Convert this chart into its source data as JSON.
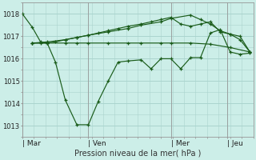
{
  "background_color": "#cceee8",
  "grid_color": "#aad4ce",
  "line_color": "#1a5c1a",
  "ylabel": "Pression niveau de la mer( hPa )",
  "ylim": [
    1012.5,
    1018.5
  ],
  "yticks": [
    1013,
    1014,
    1015,
    1016,
    1017,
    1018
  ],
  "xlim": [
    0,
    7.0
  ],
  "day_labels": [
    "| Mar",
    "| Ven",
    "| Mer",
    "| Jeu"
  ],
  "day_positions": [
    0.0,
    2.0,
    4.5,
    6.2
  ],
  "vline_positions": [
    0.0,
    2.0,
    4.5,
    6.2
  ],
  "series": [
    {
      "x": [
        0.0,
        0.3,
        0.55,
        0.75,
        1.0,
        1.3,
        1.65,
        2.0,
        2.3,
        2.6,
        2.9,
        3.2,
        3.6,
        3.9,
        4.2,
        4.5,
        4.8,
        5.1,
        5.4,
        5.7,
        6.0,
        6.3,
        6.6,
        6.9
      ],
      "y": [
        1018.0,
        1017.4,
        1016.75,
        1016.7,
        1015.85,
        1014.15,
        1013.05,
        1013.05,
        1014.1,
        1015.0,
        1015.85,
        1015.9,
        1015.95,
        1015.55,
        1016.0,
        1016.0,
        1015.55,
        1016.05,
        1016.05,
        1017.15,
        1017.3,
        1016.3,
        1016.2,
        1016.25
      ]
    },
    {
      "x": [
        0.3,
        0.55,
        0.75,
        1.0,
        1.3,
        1.65,
        2.0,
        2.3,
        2.6,
        2.9,
        3.2,
        3.6,
        3.9,
        4.2,
        4.5,
        4.8,
        5.1,
        5.4,
        5.7,
        6.0,
        6.3,
        6.6,
        6.9
      ],
      "y": [
        1016.7,
        1016.7,
        1016.7,
        1016.75,
        1016.85,
        1016.95,
        1017.05,
        1017.15,
        1017.25,
        1017.35,
        1017.45,
        1017.55,
        1017.65,
        1017.75,
        1017.85,
        1017.55,
        1017.45,
        1017.55,
        1017.65,
        1017.2,
        1017.1,
        1017.0,
        1016.3
      ]
    },
    {
      "x": [
        0.3,
        0.75,
        1.3,
        1.65,
        2.0,
        2.6,
        3.2,
        3.6,
        4.2,
        4.5,
        5.1,
        5.7,
        6.3,
        6.9
      ],
      "y": [
        1016.7,
        1016.7,
        1016.7,
        1016.7,
        1016.7,
        1016.7,
        1016.7,
        1016.7,
        1016.7,
        1016.7,
        1016.7,
        1016.65,
        1016.5,
        1016.3
      ]
    },
    {
      "x": [
        0.3,
        0.75,
        1.3,
        1.65,
        2.0,
        2.6,
        3.2,
        3.6,
        4.2,
        4.5,
        5.1,
        5.4,
        5.7,
        6.0,
        6.3,
        6.6,
        6.9
      ],
      "y": [
        1016.7,
        1016.75,
        1016.85,
        1016.95,
        1017.05,
        1017.2,
        1017.35,
        1017.5,
        1017.65,
        1017.8,
        1017.95,
        1017.75,
        1017.55,
        1017.25,
        1017.1,
        1016.85,
        1016.3
      ]
    }
  ]
}
